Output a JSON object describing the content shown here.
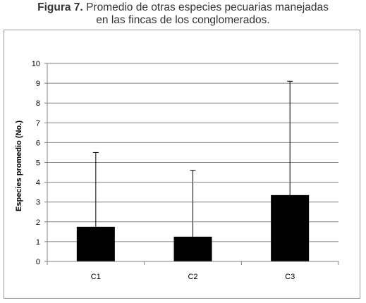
{
  "caption": {
    "label": "Figura 7.",
    "text_line1": "Promedio de otras especies pecuarias manejadas",
    "text_line2": "en las fincas de los conglomerados."
  },
  "chart_data": {
    "type": "bar",
    "title": "",
    "xlabel": "",
    "ylabel": "Especies promedio (No.)",
    "categories": [
      "C1",
      "C2",
      "C3"
    ],
    "values": [
      1.75,
      1.25,
      3.35
    ],
    "error_upper": [
      5.5,
      4.6,
      9.1
    ],
    "ylim": [
      0,
      10
    ],
    "yticks": [
      0,
      1,
      2,
      3,
      4,
      5,
      6,
      7,
      8,
      9,
      10
    ],
    "grid": true,
    "bar_color": "#000000"
  }
}
